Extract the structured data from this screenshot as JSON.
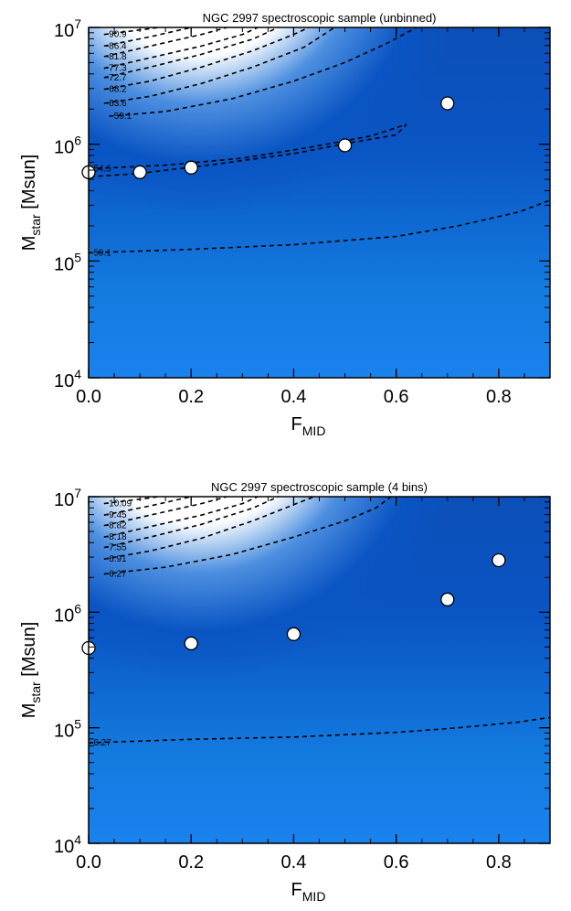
{
  "chart_data": [
    {
      "type": "scatter",
      "title": "NGC 2997 spectroscopic sample (unbinned)",
      "xlabel": "F",
      "xlabel_sub": "MID",
      "ylabel": "M",
      "ylabel_sub": "star",
      "ylabel_suffix": " [Msun]",
      "xlim": [
        0.0,
        0.9
      ],
      "ylim_log10": [
        4,
        7
      ],
      "x_ticks": [
        0.0,
        0.2,
        0.4,
        0.6,
        0.8
      ],
      "x_tick_labels": [
        "0.0",
        "0.2",
        "0.4",
        "0.6",
        "0.8"
      ],
      "y_ticks_log10": [
        4,
        5,
        6,
        7
      ],
      "y_tick_base": "10",
      "y_tick_exps": [
        "4",
        "5",
        "6",
        "7"
      ],
      "background": {
        "type": "likelihood-map",
        "colors": [
          "#ffffff",
          "#0a55c4",
          "#1a82ee"
        ]
      },
      "points": [
        {
          "x": 0.0,
          "y_log10": 5.76
        },
        {
          "x": 0.1,
          "y_log10": 5.76
        },
        {
          "x": 0.2,
          "y_log10": 5.8
        },
        {
          "x": 0.5,
          "y_log10": 5.99
        },
        {
          "x": 0.7,
          "y_log10": 6.35
        }
      ],
      "contours": [
        {
          "label": "-90.9",
          "pts": [
            [
              0.03,
              6.94
            ],
            [
              0.12,
              6.99
            ],
            [
              0.17,
              7.02
            ]
          ]
        },
        {
          "label": "-86.4",
          "pts": [
            [
              0.03,
              6.84
            ],
            [
              0.12,
              6.92
            ],
            [
              0.2,
              7.0
            ]
          ]
        },
        {
          "label": "-81.8",
          "pts": [
            [
              0.03,
              6.75
            ],
            [
              0.12,
              6.84
            ],
            [
              0.22,
              6.94
            ],
            [
              0.27,
              7.0
            ]
          ]
        },
        {
          "label": "-77.3",
          "pts": [
            [
              0.03,
              6.65
            ],
            [
              0.12,
              6.74
            ],
            [
              0.22,
              6.84
            ],
            [
              0.3,
              6.94
            ],
            [
              0.33,
              7.0
            ]
          ]
        },
        {
          "label": "-72.7",
          "pts": [
            [
              0.03,
              6.57
            ],
            [
              0.12,
              6.66
            ],
            [
              0.22,
              6.77
            ],
            [
              0.32,
              6.9
            ],
            [
              0.37,
              7.0
            ]
          ]
        },
        {
          "label": "-68.2",
          "pts": [
            [
              0.03,
              6.47
            ],
            [
              0.12,
              6.54
            ],
            [
              0.22,
              6.66
            ],
            [
              0.32,
              6.8
            ],
            [
              0.4,
              6.94
            ],
            [
              0.43,
              7.0
            ]
          ]
        },
        {
          "label": "-63.6",
          "pts": [
            [
              0.03,
              6.35
            ],
            [
              0.12,
              6.41
            ],
            [
              0.22,
              6.52
            ],
            [
              0.32,
              6.66
            ],
            [
              0.42,
              6.83
            ],
            [
              0.48,
              7.0
            ]
          ]
        },
        {
          "label": "-59.1",
          "pts": [
            [
              0.04,
              6.24
            ],
            [
              0.15,
              6.28
            ],
            [
              0.28,
              6.39
            ],
            [
              0.4,
              6.54
            ],
            [
              0.5,
              6.7
            ],
            [
              0.58,
              6.86
            ],
            [
              0.64,
              7.0
            ]
          ]
        },
        {
          "label": "-59.1",
          "pts": [
            [
              0.0,
              5.07
            ],
            [
              0.2,
              5.1
            ],
            [
              0.4,
              5.14
            ],
            [
              0.6,
              5.21
            ],
            [
              0.72,
              5.3
            ],
            [
              0.84,
              5.42
            ],
            [
              0.9,
              5.52
            ]
          ]
        },
        {
          "label": "-54.5",
          "pts": [
            [
              0.0,
              5.79
            ],
            [
              0.15,
              5.82
            ],
            [
              0.3,
              5.88
            ],
            [
              0.44,
              5.98
            ],
            [
              0.55,
              6.07
            ],
            [
              0.62,
              6.17
            ],
            [
              0.6,
              6.08
            ],
            [
              0.52,
              6.02
            ],
            [
              0.4,
              5.92
            ],
            [
              0.25,
              5.83
            ],
            [
              0.1,
              5.75
            ],
            [
              0.0,
              5.72
            ]
          ]
        }
      ]
    },
    {
      "type": "scatter",
      "title": "NGC 2997 spectroscopic sample (4 bins)",
      "xlabel": "F",
      "xlabel_sub": "MID",
      "ylabel": "M",
      "ylabel_sub": "star",
      "ylabel_suffix": " [Msun]",
      "xlim": [
        0.0,
        0.9
      ],
      "ylim_log10": [
        4,
        7
      ],
      "x_ticks": [
        0.0,
        0.2,
        0.4,
        0.6,
        0.8
      ],
      "x_tick_labels": [
        "0.0",
        "0.2",
        "0.4",
        "0.6",
        "0.8"
      ],
      "y_ticks_log10": [
        4,
        5,
        6,
        7
      ],
      "y_tick_base": "10",
      "y_tick_exps": [
        "4",
        "5",
        "6",
        "7"
      ],
      "background": {
        "type": "likelihood-map",
        "colors": [
          "#ffffff",
          "#0a55c4",
          "#1a82ee"
        ]
      },
      "points": [
        {
          "x": 0.0,
          "y_log10": 5.69
        },
        {
          "x": 0.2,
          "y_log10": 5.73
        },
        {
          "x": 0.4,
          "y_log10": 5.81
        },
        {
          "x": 0.7,
          "y_log10": 6.11
        },
        {
          "x": 0.8,
          "y_log10": 6.45
        }
      ],
      "contours": [
        {
          "label": "-10.09",
          "pts": [
            [
              0.03,
              6.94
            ],
            [
              0.12,
              6.99
            ],
            [
              0.17,
              7.02
            ]
          ]
        },
        {
          "label": "-9.45",
          "pts": [
            [
              0.03,
              6.84
            ],
            [
              0.12,
              6.92
            ],
            [
              0.2,
              7.0
            ]
          ]
        },
        {
          "label": "-8.82",
          "pts": [
            [
              0.03,
              6.75
            ],
            [
              0.12,
              6.84
            ],
            [
              0.22,
              6.94
            ],
            [
              0.27,
              7.0
            ]
          ]
        },
        {
          "label": "-8.18",
          "pts": [
            [
              0.03,
              6.65
            ],
            [
              0.12,
              6.74
            ],
            [
              0.22,
              6.84
            ],
            [
              0.3,
              6.94
            ],
            [
              0.33,
              7.0
            ]
          ]
        },
        {
          "label": "-7.55",
          "pts": [
            [
              0.03,
              6.56
            ],
            [
              0.12,
              6.65
            ],
            [
              0.22,
              6.76
            ],
            [
              0.32,
              6.9
            ],
            [
              0.37,
              7.0
            ]
          ]
        },
        {
          "label": "-6.91",
          "pts": [
            [
              0.03,
              6.46
            ],
            [
              0.12,
              6.53
            ],
            [
              0.22,
              6.64
            ],
            [
              0.32,
              6.79
            ],
            [
              0.4,
              6.93
            ],
            [
              0.44,
              7.0
            ]
          ]
        },
        {
          "label": "-6.27",
          "pts": [
            [
              0.03,
              6.33
            ],
            [
              0.15,
              6.39
            ],
            [
              0.28,
              6.5
            ],
            [
              0.4,
              6.65
            ],
            [
              0.5,
              6.79
            ],
            [
              0.56,
              6.9
            ],
            [
              0.59,
              7.0
            ]
          ]
        },
        {
          "label": "-6.27",
          "pts": [
            [
              0.0,
              4.87
            ],
            [
              0.2,
              4.9
            ],
            [
              0.4,
              4.92
            ],
            [
              0.6,
              4.96
            ],
            [
              0.72,
              5.0
            ],
            [
              0.84,
              5.05
            ],
            [
              0.9,
              5.09
            ]
          ]
        }
      ]
    }
  ]
}
